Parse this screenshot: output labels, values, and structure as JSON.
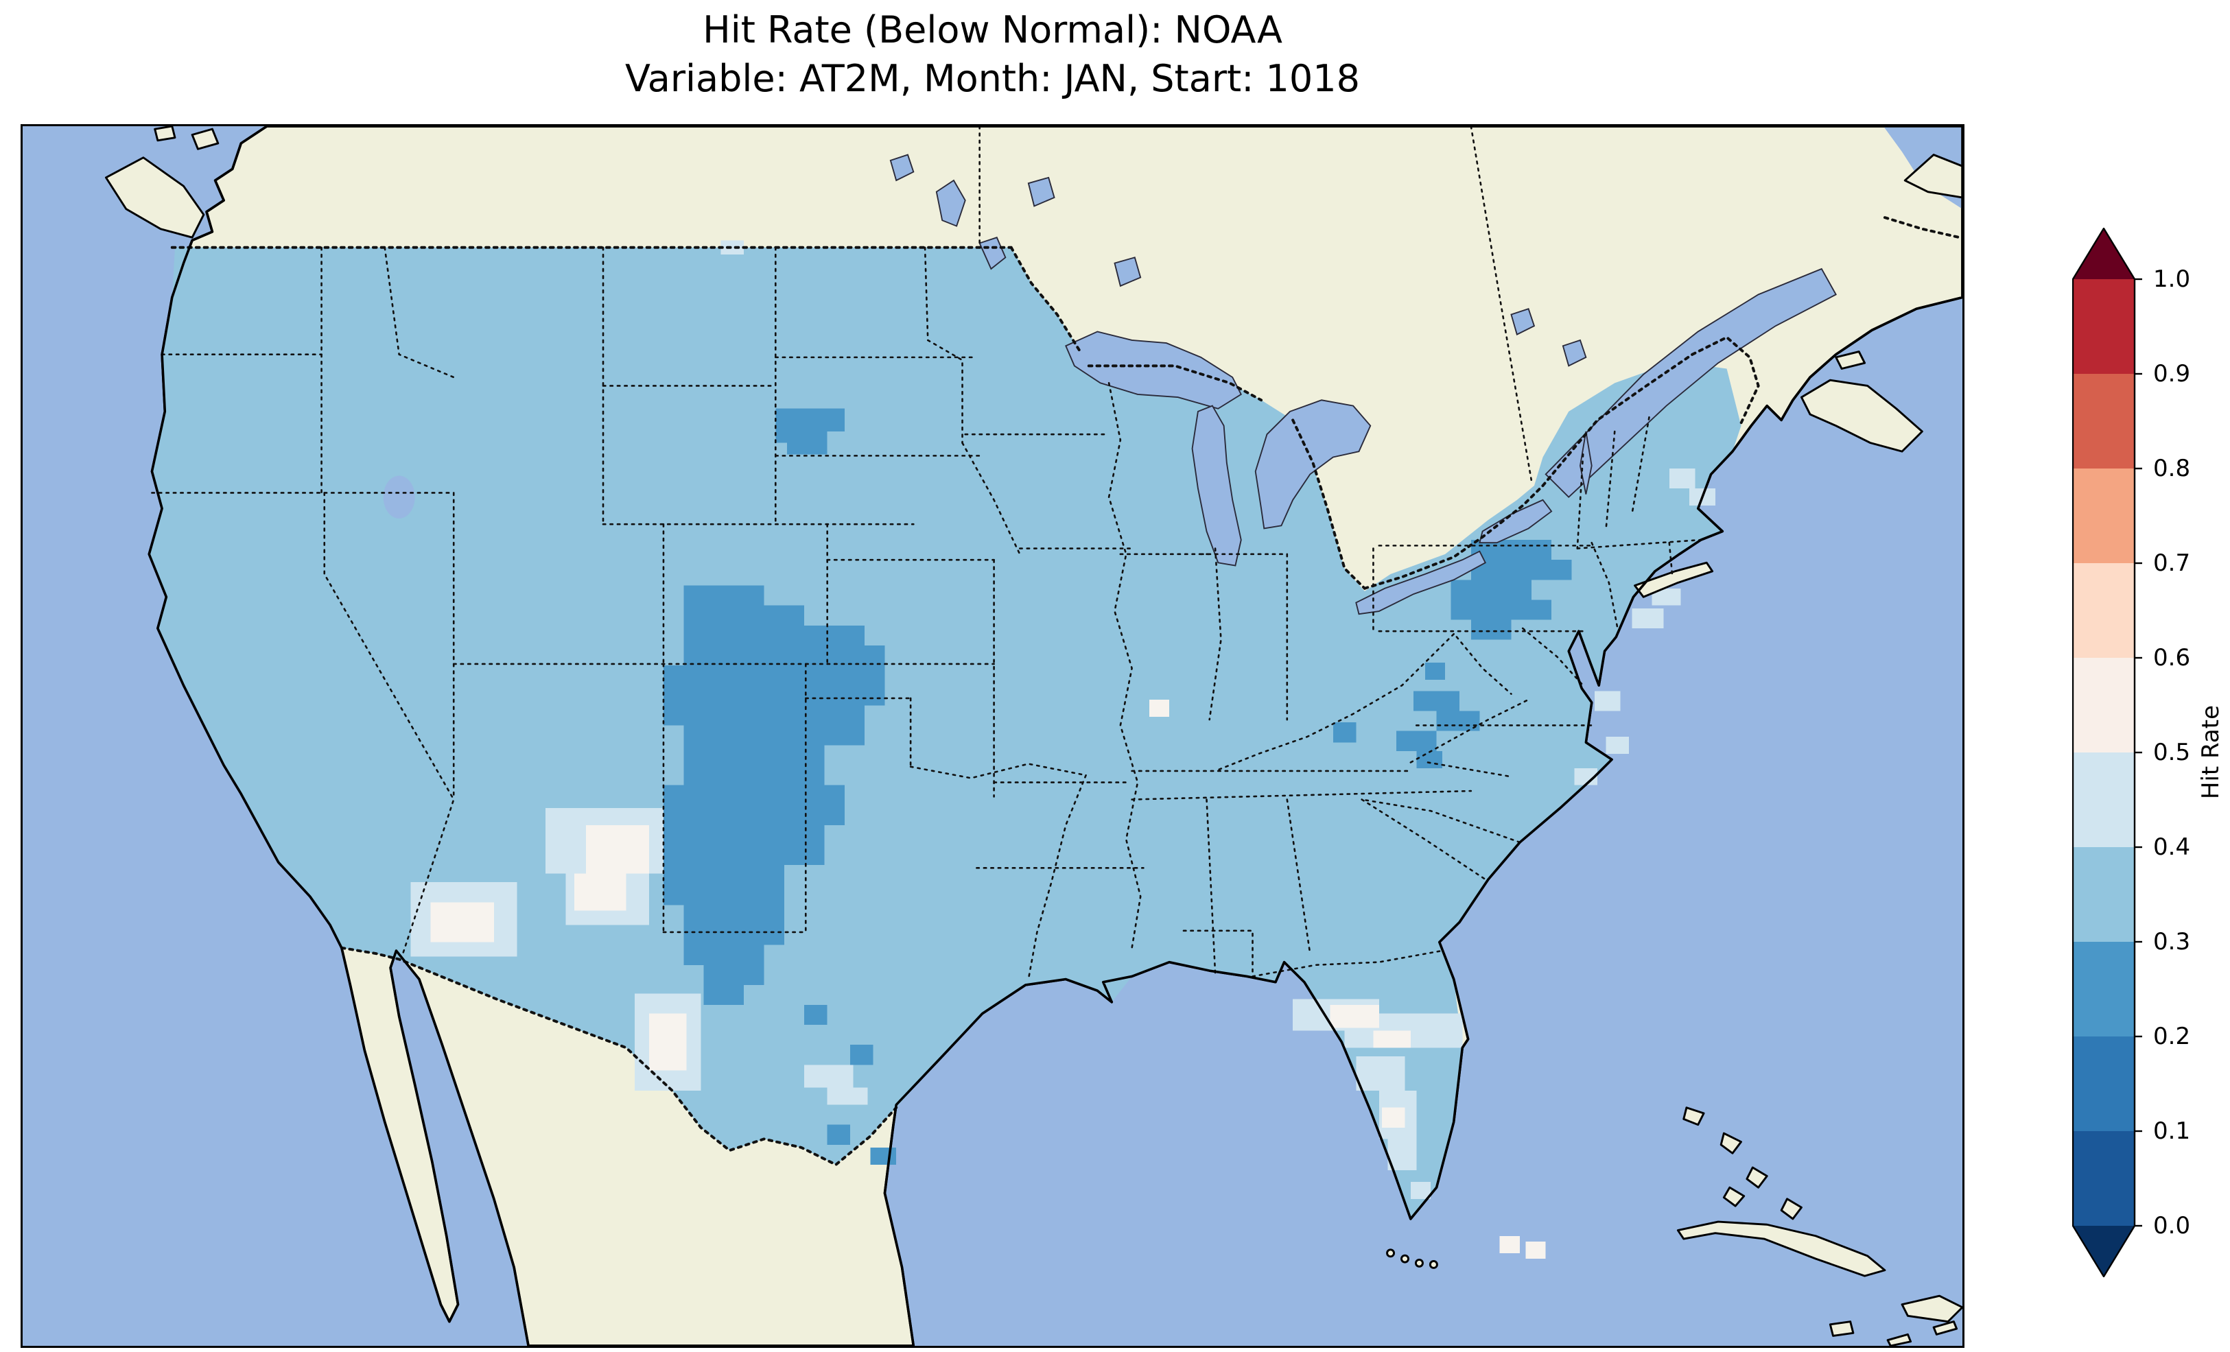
{
  "title": {
    "line1": "Hit Rate (Below Normal): NOAA",
    "line2": "Variable: AT2M, Month: JAN, Start: 1018"
  },
  "colorbar": {
    "label": "Hit Rate",
    "ticks": [
      "1.0",
      "0.9",
      "0.8",
      "0.7",
      "0.6",
      "0.5",
      "0.4",
      "0.3",
      "0.2",
      "0.1",
      "0.0"
    ],
    "bin_colors_top_to_bottom": [
      "#b92732",
      "#d6604d",
      "#f4a582",
      "#fddbc7",
      "#f9efe9",
      "#d1e5f0",
      "#92c5de",
      "#4a97c8",
      "#2f79b5",
      "#1b5899"
    ],
    "extend_over_color": "#67001f",
    "extend_under_color": "#083163"
  },
  "map": {
    "ocean_color": "#98b7e2",
    "land_color": "#f0f0dc",
    "field_color": "#92c5de",
    "patch_dark_color": "#4a97c8",
    "patch_pale_color": "#d1e5f0",
    "patch_white_color": "#f7f3ee",
    "coastline_color": "#000000",
    "boundary_line_style": "dotted"
  },
  "chart_data": {
    "type": "heatmap",
    "title": "Hit Rate (Below Normal): NOAA",
    "subtitle": "Variable: AT2M, Month: JAN, Start: 1018",
    "dataset": "NOAA",
    "variable": "AT2M",
    "month": "JAN",
    "start": "1018",
    "metric": "Hit Rate (Below Normal)",
    "region": "Contiguous United States with surrounding Canada, Mexico, Gulf of Mexico and western Atlantic",
    "colorbar": {
      "label": "Hit Rate",
      "range": [
        0.0,
        1.0
      ],
      "ticks": [
        1.0,
        0.9,
        0.8,
        0.7,
        0.6,
        0.5,
        0.4,
        0.3,
        0.2,
        0.1,
        0.0
      ],
      "colormap": "RdBu_r, 10 discrete bins",
      "extend": "both",
      "position": "right"
    },
    "observed_values": [
      {
        "area": "Most of the contiguous US",
        "hit_rate": "0.3-0.4"
      },
      {
        "area": "Colorado / New Mexico / Texas Panhandle cluster",
        "hit_rate": "0.2-0.3"
      },
      {
        "area": "Central Appalachians (West Virginia - SW Pennsylvania)",
        "hit_rate": "0.2-0.3"
      },
      {
        "area": "Western South Dakota spot",
        "hit_rate": "0.2-0.3"
      },
      {
        "area": "Western North Carolina / SW Virginia spots",
        "hit_rate": "0.2-0.3"
      },
      {
        "area": "Arizona - New Mexico border patches",
        "hit_rate": "0.5-0.6"
      },
      {
        "area": "Big Bend west Texas patch",
        "hit_rate": "0.4-0.6"
      },
      {
        "area": "North-central Florida patches",
        "hit_rate": "0.4-0.6"
      },
      {
        "area": "Scattered mid-Atlantic / New England coastal cells",
        "hit_rate": "0.4-0.5"
      }
    ],
    "note": "Field covers only the contiguous US; no grid cells reach the red (>0.6) half of the scale. Surrounding land (Canada, Mexico) unshaded beige; oceans and Great Lakes light periwinkle."
  }
}
